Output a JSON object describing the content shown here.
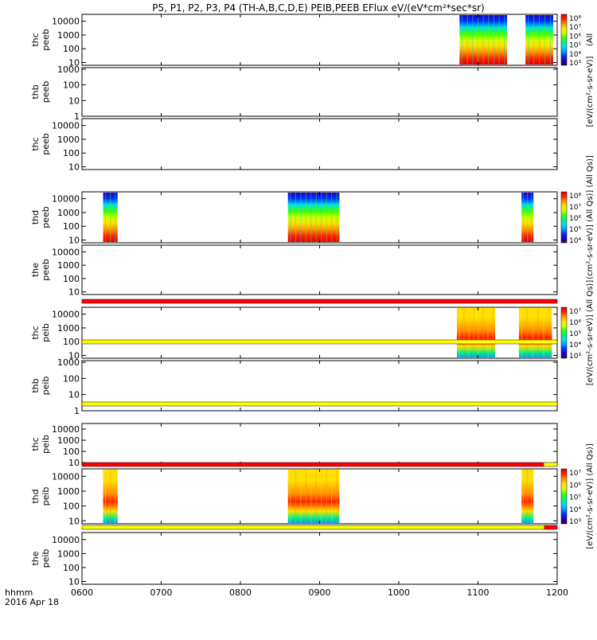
{
  "chart_data": {
    "type": "heatmap",
    "title": "P5, P1, P2, P3, P4 (TH-A,B,C,D,E) PEIB,PEEB EFlux eV/(eV*cm²*sec*sr)",
    "x_range": [
      "0600",
      "1200"
    ],
    "x_ticks": [
      "0600",
      "0700",
      "0800",
      "0900",
      "1000",
      "1100",
      "1200"
    ],
    "x_label_lines": [
      "hhmm",
      "2016 Apr 18"
    ],
    "panels": [
      {
        "label": [
          "thc",
          "peeb"
        ],
        "y_ticks": [
          "10000",
          "1000",
          "100",
          "10"
        ],
        "y_log_range": [
          0.8,
          4.5
        ],
        "data_intervals": [
          [
            "1046",
            "1122"
          ],
          [
            "1136",
            "1157"
          ]
        ],
        "colorbar_index": 0
      },
      {
        "label": [
          "thb",
          "peeb"
        ],
        "y_ticks": [
          "1000",
          "100",
          "10",
          "1"
        ],
        "y_log_range": [
          0,
          3.1
        ],
        "data_intervals": [],
        "colorbar_index": 1
      },
      {
        "label": [
          "thc",
          "peeb"
        ],
        "y_ticks": [
          "10000",
          "1000",
          "100",
          "10"
        ],
        "y_log_range": [
          0.8,
          4.5
        ],
        "data_intervals": [],
        "colorbar_index": 1
      },
      {
        "label": [
          "thd",
          "peeb"
        ],
        "y_ticks": [
          "10000",
          "1000",
          "100",
          "10"
        ],
        "y_log_range": [
          0.8,
          4.5
        ],
        "data_intervals": [
          [
            "0616",
            "0627"
          ],
          [
            "0836",
            "0915"
          ],
          [
            "1133",
            "1142"
          ]
        ],
        "colorbar_index": 2
      },
      {
        "label": [
          "the",
          "peeb"
        ],
        "y_ticks": [
          "10000",
          "1000",
          "100",
          "10"
        ],
        "y_log_range": [
          0.8,
          4.5
        ],
        "data_intervals": [],
        "colorbar_index": 2
      },
      {
        "label": [
          "thc",
          "peib"
        ],
        "y_ticks": [
          "10000",
          "1000",
          "100",
          "10"
        ],
        "y_log_range": [
          0.8,
          4.5
        ],
        "data_intervals": [
          [
            "1044",
            "1113"
          ],
          [
            "1131",
            "1156"
          ]
        ],
        "colorbar_index": 3
      },
      {
        "label": [
          "thb",
          "peib"
        ],
        "y_ticks": [
          "1000",
          "100",
          "10",
          "1"
        ],
        "y_log_range": [
          0,
          3.1
        ],
        "data_intervals": [],
        "colorbar_index": 3
      },
      {
        "label": [
          "thc",
          "peib"
        ],
        "y_ticks": [
          "10000",
          "1000",
          "100",
          "10"
        ],
        "y_log_range": [
          0.8,
          4.5
        ],
        "data_intervals": [],
        "colorbar_index": 3
      },
      {
        "label": [
          "thd",
          "peib"
        ],
        "y_ticks": [
          "10000",
          "1000",
          "100",
          "10"
        ],
        "y_log_range": [
          0.8,
          4.5
        ],
        "data_intervals": [
          [
            "0616",
            "0627"
          ],
          [
            "0836",
            "0915"
          ],
          [
            "1133",
            "1142"
          ]
        ],
        "colorbar_index": 4
      },
      {
        "label": [
          "the",
          "peib"
        ],
        "y_ticks": [
          "10000",
          "1000",
          "100",
          "10"
        ],
        "y_log_range": [
          0.8,
          4.5
        ],
        "data_intervals": [],
        "colorbar_index": 4
      }
    ],
    "colorbars": [
      {
        "ticks": [
          "10⁸",
          "10⁷",
          "10⁶",
          "10⁵",
          "10⁴",
          "10³"
        ],
        "label": "(All"
      },
      {
        "ticks": [],
        "label": "[eV/(cm²-s-sr-eV)]"
      },
      {
        "ticks": [
          "10⁸",
          "10⁷",
          "10⁶",
          "10⁵",
          "10⁴"
        ],
        "label": "(cm²-s-sr-eV)] (All Qs)] (All Qs)]"
      },
      {
        "ticks": [
          "10⁷",
          "10⁶",
          "10⁵",
          "10⁴",
          "10³"
        ],
        "label": "[eV/(cm²-s-sr-eV)] (All Qs)]"
      },
      {
        "ticks": [
          "10⁷",
          "10⁶",
          "10⁵",
          "10⁴",
          "10³"
        ],
        "label": "[eV/(cm²-s-sr-eV)] (All Qs)]"
      }
    ],
    "status_bars": [
      {
        "after_panel": 4,
        "segments": [
          {
            "from": "0600",
            "to": "1200",
            "color": "#ff0000"
          }
        ]
      },
      {
        "after_panel": 5,
        "segments": [
          {
            "from": "0600",
            "to": "1200",
            "color": "#ffff00"
          }
        ]
      },
      {
        "after_panel": 6,
        "segments": [
          {
            "from": "0600",
            "to": "1200",
            "color": "#ffff00"
          }
        ]
      },
      {
        "after_panel": 7,
        "segments": [
          {
            "from": "0600",
            "to": "1150",
            "color": "#ff0000"
          },
          {
            "from": "1150",
            "to": "1200",
            "color": "#ffff00"
          }
        ]
      },
      {
        "after_panel": 8,
        "segments": [
          {
            "from": "0600",
            "to": "1150",
            "color": "#ffff00"
          },
          {
            "from": "1150",
            "to": "1200",
            "color": "#ff0000"
          }
        ]
      }
    ],
    "colormap": [
      "#3c0050",
      "#2000c0",
      "#0030ff",
      "#00a0ff",
      "#00e0e0",
      "#00f080",
      "#40ff00",
      "#d0ff00",
      "#ffe000",
      "#ff9000",
      "#ff2000",
      "#e00000"
    ]
  }
}
